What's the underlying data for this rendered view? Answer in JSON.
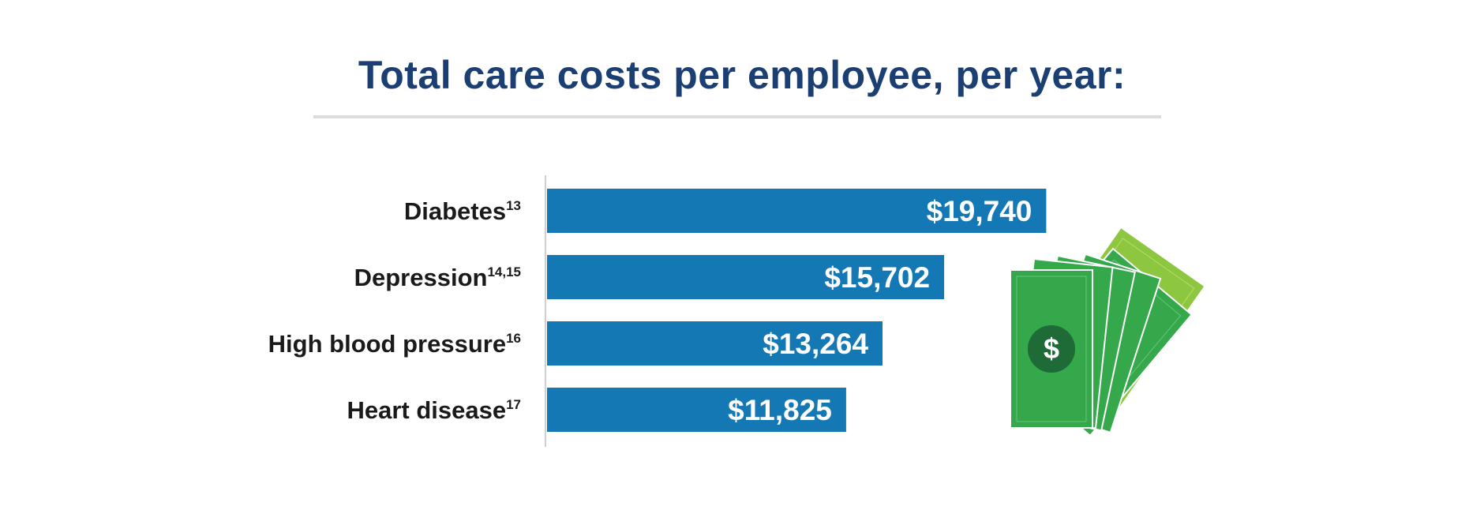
{
  "chart_data": {
    "type": "bar",
    "orientation": "horizontal",
    "title": "Total care costs per employee, per year:",
    "categories": [
      "Diabetes",
      "Depression",
      "High blood pressure",
      "Heart disease"
    ],
    "footnotes": [
      "13",
      "14,15",
      "16",
      "17"
    ],
    "values": [
      19740,
      15702,
      13264,
      11825
    ],
    "value_labels": [
      "$19,740",
      "$15,702",
      "$13,264",
      "$11,825"
    ],
    "xlim": [
      0,
      20600
    ],
    "bar_color": "#1478b4",
    "grid": false
  },
  "decoration": {
    "icon": "money-bills-icon",
    "bill_color": "#34a84a",
    "bill_light_color": "#8dc63f",
    "symbol": "$"
  }
}
